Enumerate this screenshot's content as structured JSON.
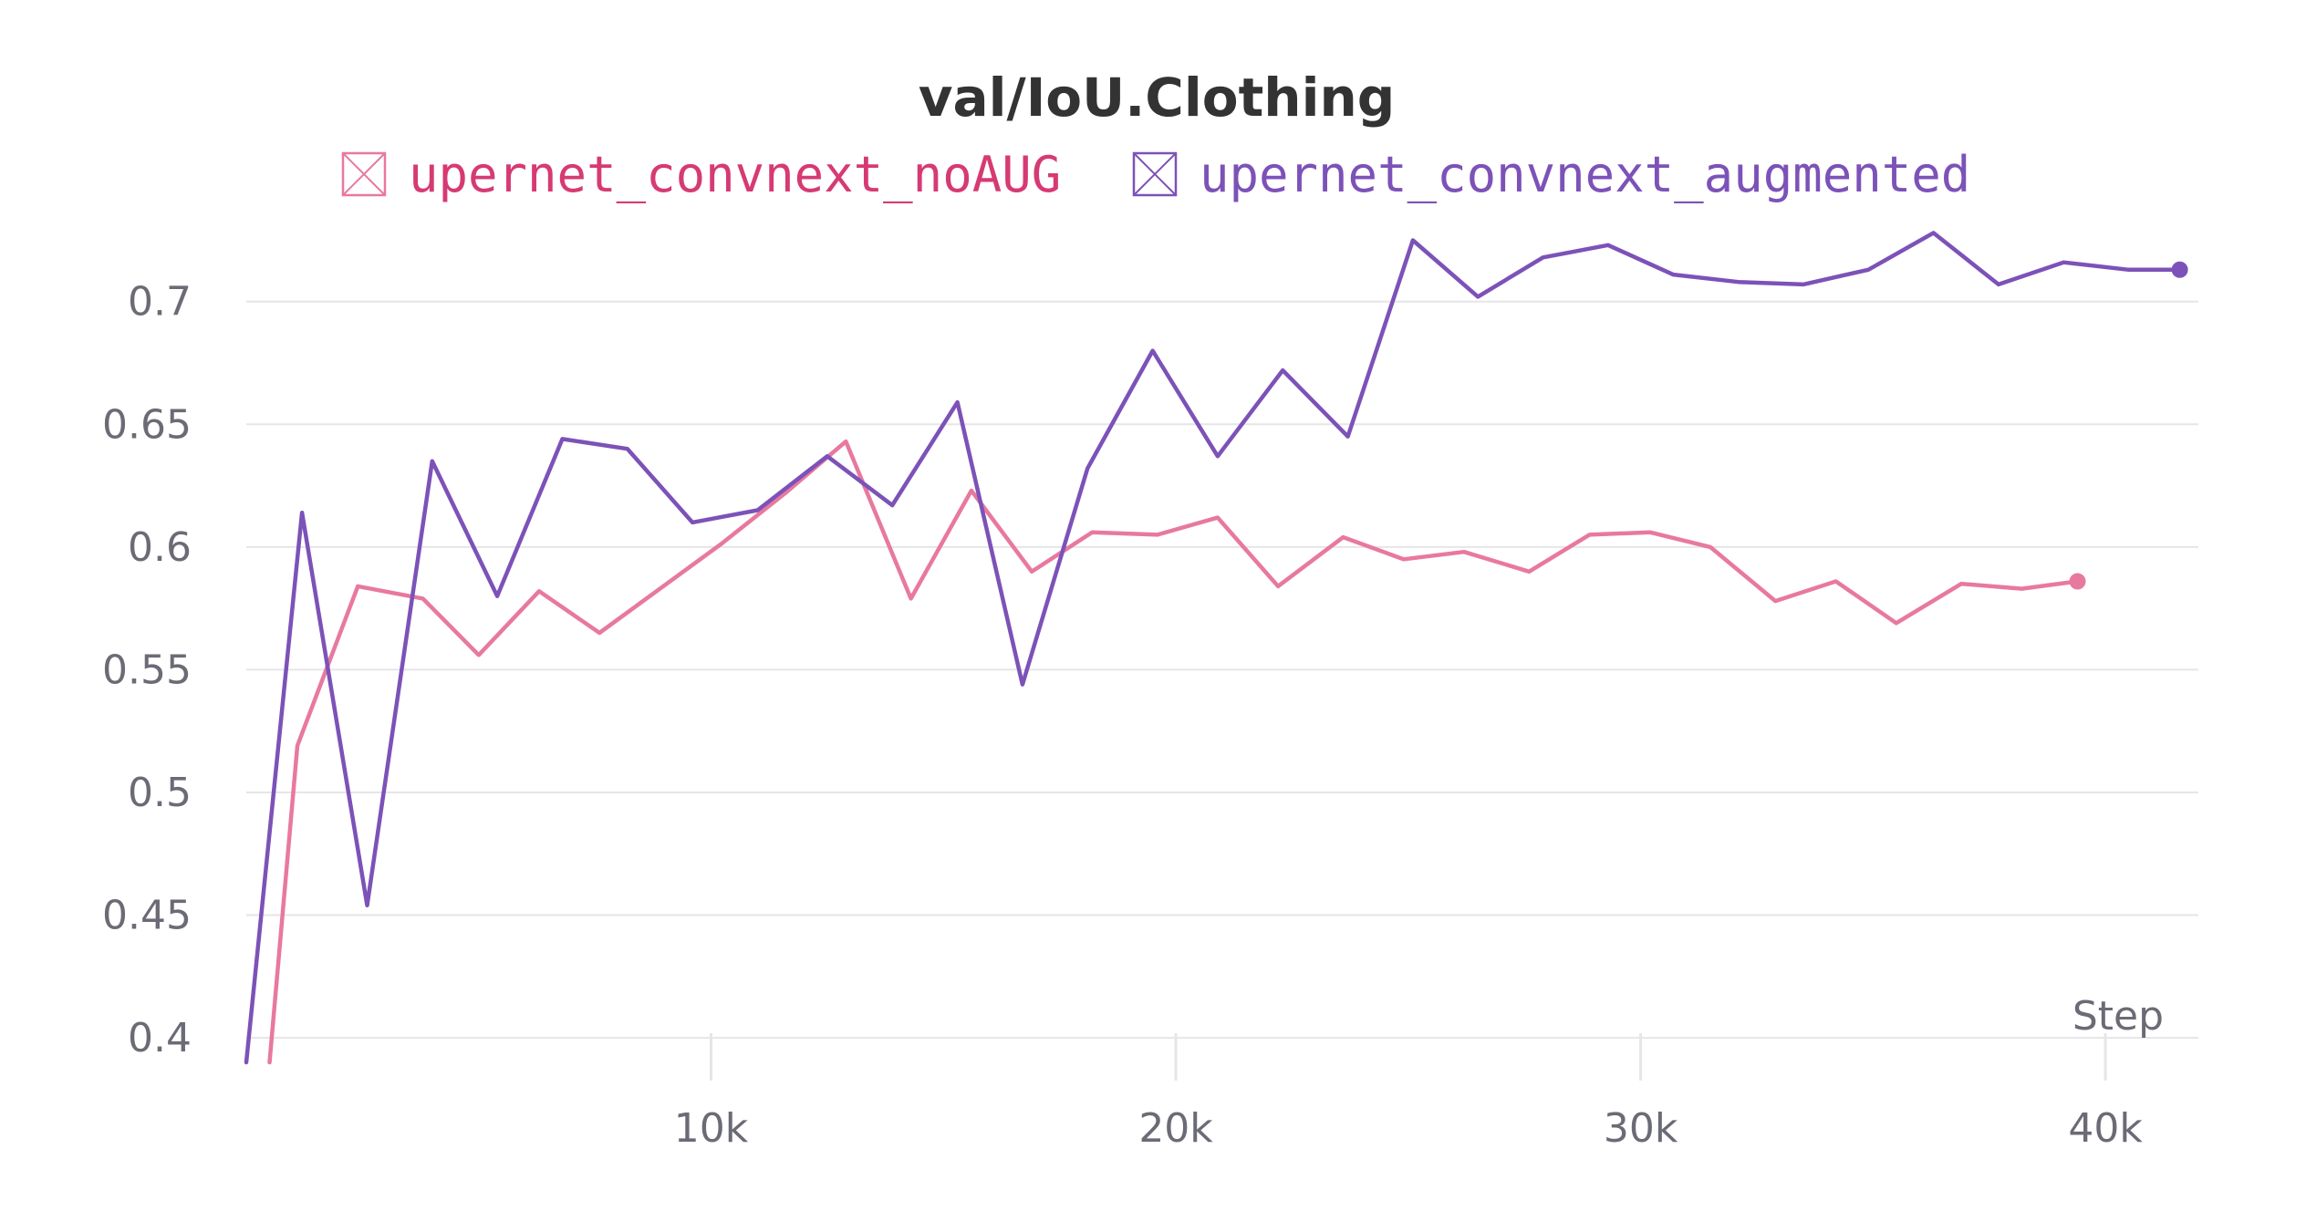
{
  "chart_data": {
    "type": "line",
    "title": "val/IoU.Clothing",
    "xlabel": "Step",
    "ylabel": "",
    "xlim": [
      0,
      42000
    ],
    "ylim": [
      0.39,
      0.73
    ],
    "x_ticks": [
      10000,
      20000,
      30000,
      40000
    ],
    "x_tick_labels": [
      "10k",
      "20k",
      "30k",
      "40k"
    ],
    "y_ticks": [
      0.4,
      0.45,
      0.5,
      0.55,
      0.6,
      0.65,
      0.7
    ],
    "y_tick_labels": [
      "0.4",
      "0.45",
      "0.5",
      "0.55",
      "0.6",
      "0.65",
      "0.7"
    ],
    "grid": true,
    "legend_position": "top",
    "series": [
      {
        "name": "upernet_convnext_noAUG",
        "color": "#e8799e",
        "legend_color": "#d63a73",
        "x": [
          500,
          1100,
          2400,
          3800,
          5000,
          6300,
          7600,
          8900,
          10200,
          11600,
          12900,
          14300,
          15600,
          16900,
          18200,
          19600,
          20900,
          22200,
          23600,
          24900,
          26200,
          27600,
          28900,
          30200,
          31500,
          32900,
          34200,
          35500,
          36900,
          38200,
          39400
        ],
        "y": [
          0.39,
          0.519,
          0.584,
          0.579,
          0.556,
          0.582,
          0.565,
          0.583,
          0.601,
          0.622,
          0.643,
          0.579,
          0.623,
          0.59,
          0.606,
          0.605,
          0.612,
          0.584,
          0.604,
          0.595,
          0.598,
          0.59,
          0.605,
          0.606,
          0.6,
          0.578,
          0.586,
          0.569,
          0.585,
          0.583,
          0.586
        ]
      },
      {
        "name": "upernet_convnext_augmented",
        "color": "#7c52b8",
        "legend_color": "#7c52b8",
        "x": [
          0,
          1200,
          2600,
          4000,
          5400,
          6800,
          8200,
          9600,
          11000,
          12500,
          13900,
          15300,
          16700,
          18100,
          19500,
          20900,
          22300,
          23700,
          25100,
          26500,
          27900,
          29300,
          30700,
          32100,
          33500,
          34900,
          36300,
          37700,
          39100,
          40500,
          41600
        ],
        "y": [
          0.39,
          0.614,
          0.454,
          0.635,
          0.58,
          0.644,
          0.64,
          0.61,
          0.615,
          0.637,
          0.617,
          0.659,
          0.544,
          0.632,
          0.68,
          0.637,
          0.672,
          0.645,
          0.725,
          0.702,
          0.718,
          0.723,
          0.711,
          0.708,
          0.707,
          0.713,
          0.728,
          0.707,
          0.716,
          0.713,
          0.713
        ]
      }
    ]
  }
}
